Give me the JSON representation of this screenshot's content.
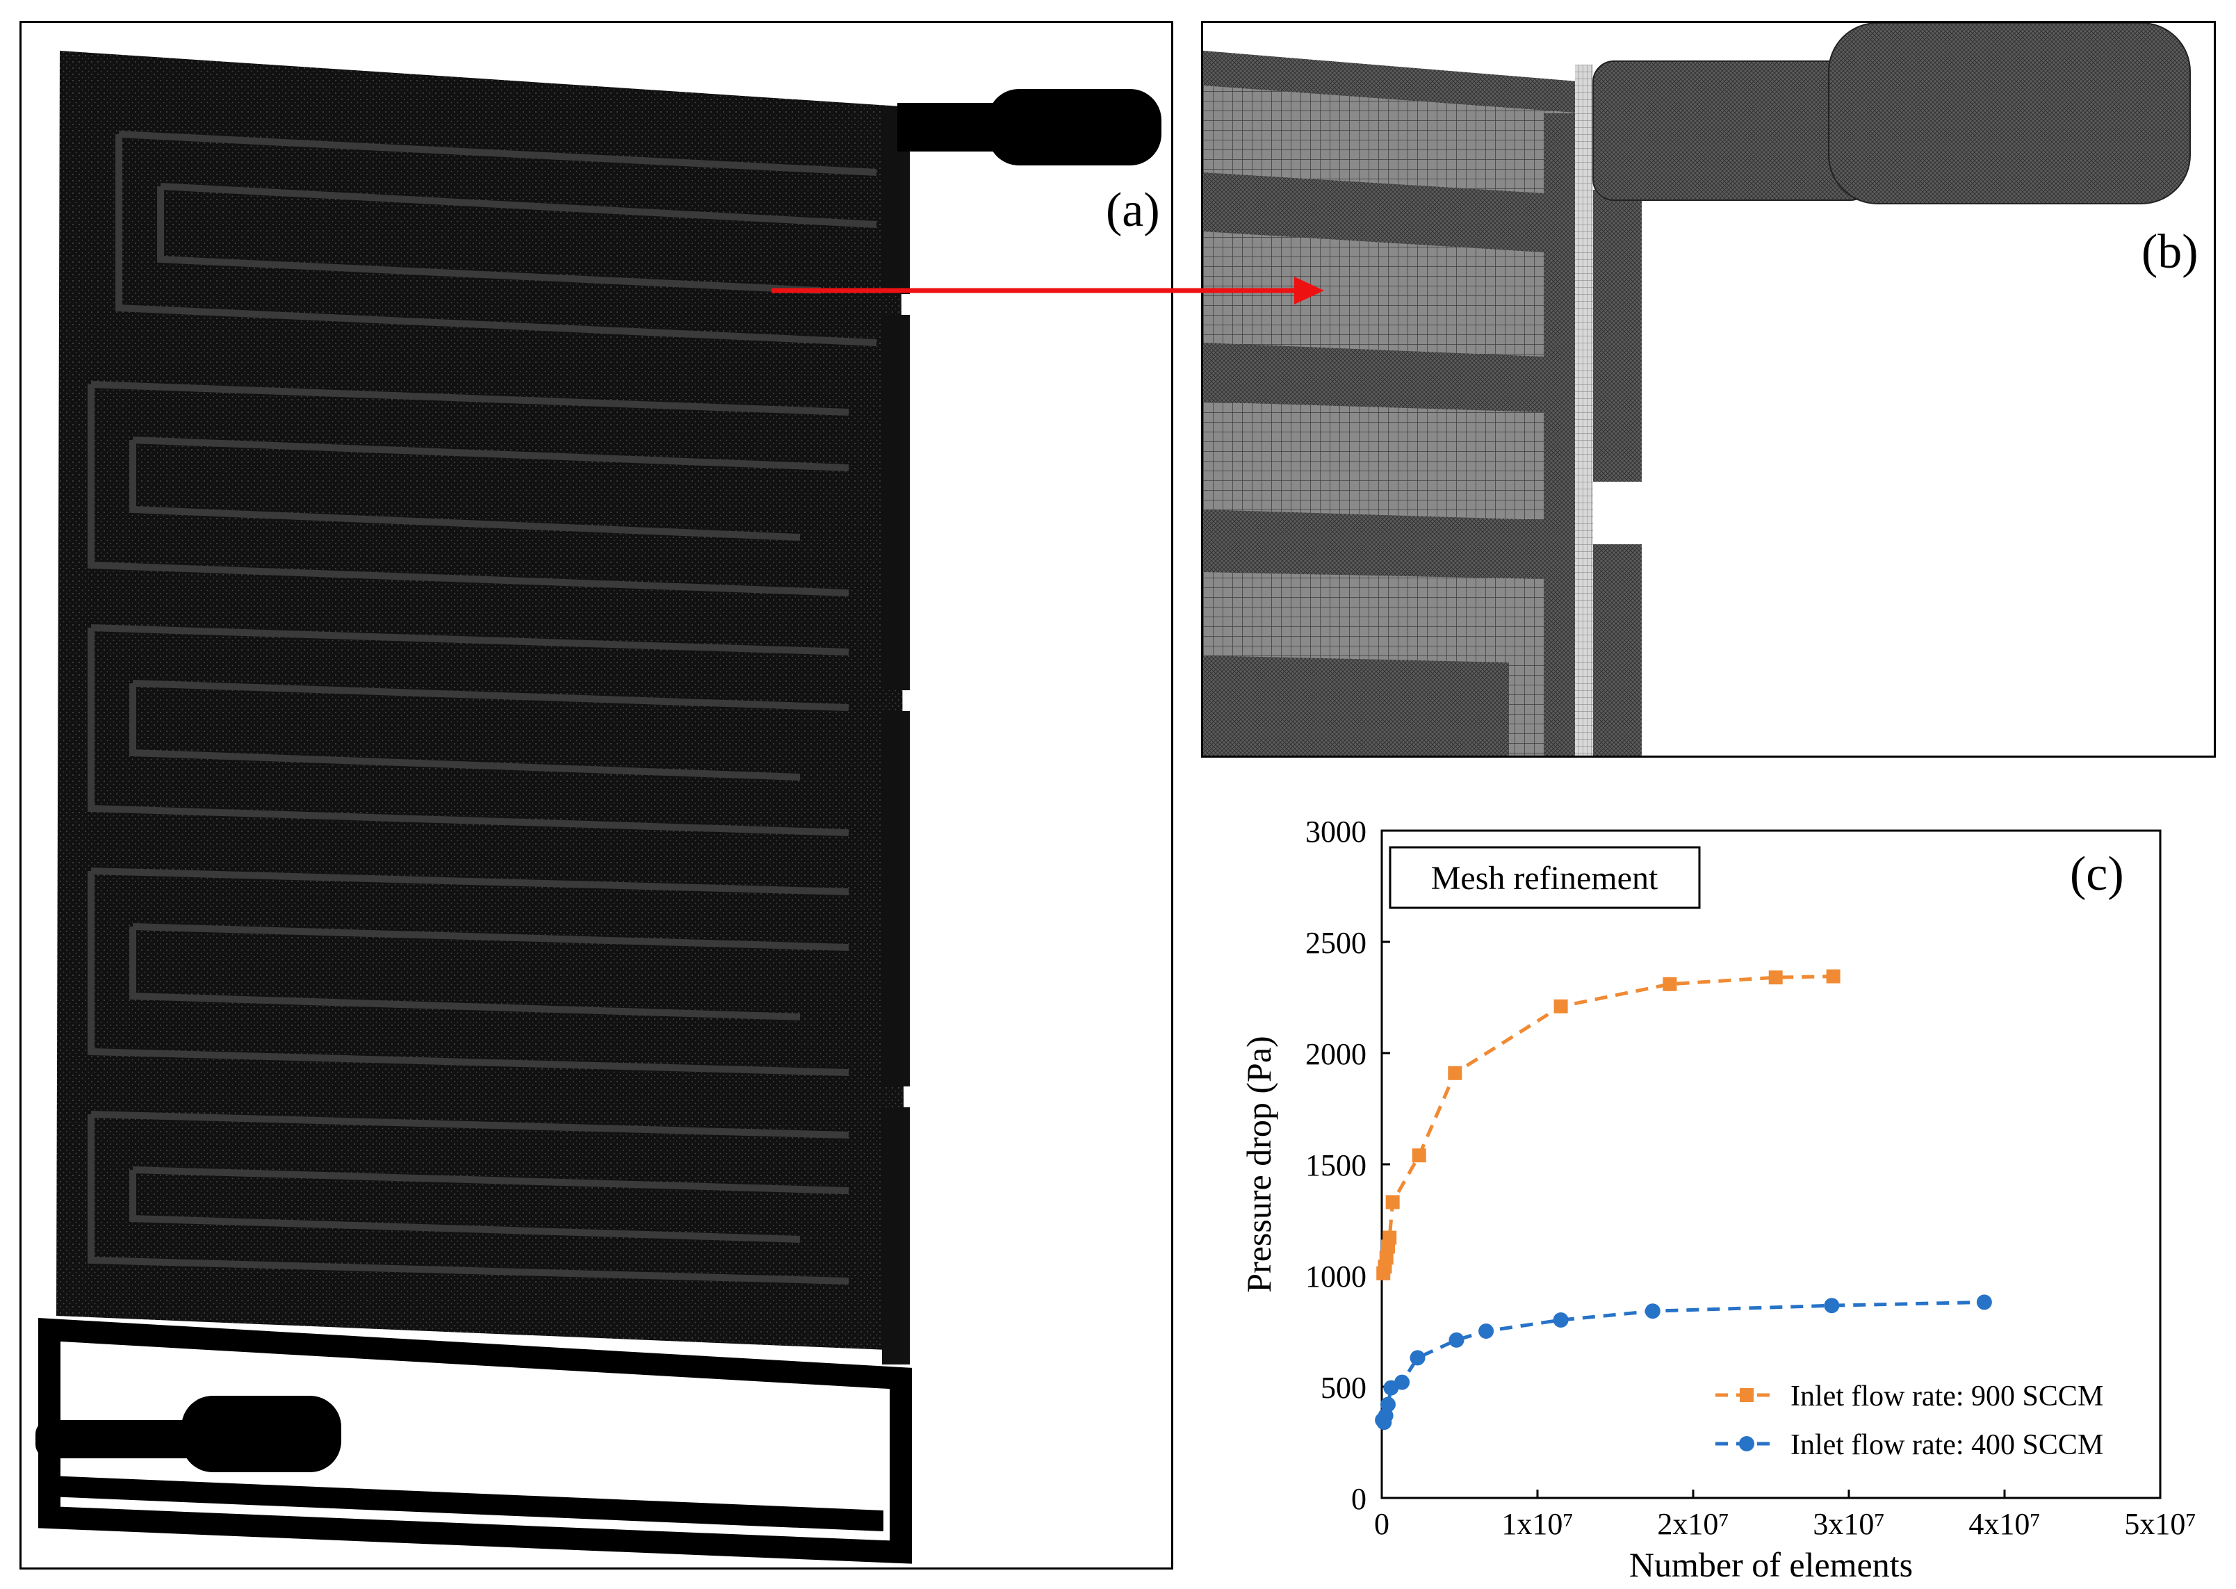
{
  "labels": {
    "a": "(a)",
    "b": "(b)",
    "c": "(c)"
  },
  "colors": {
    "arrow": "#ee1111",
    "series_900": "#f08a33",
    "series_400": "#2673c8"
  },
  "chart_data": {
    "type": "scatter",
    "title": "Mesh refinement",
    "xlabel": "Number of elements",
    "ylabel": "Pressure drop (Pa)",
    "xlim": [
      0,
      50000000
    ],
    "ylim": [
      0,
      3000
    ],
    "xticks": [
      "0",
      "1x10⁷",
      "2x10⁷",
      "3x10⁷",
      "4x10⁷",
      "5x10⁷"
    ],
    "yticks": [
      "0",
      "500",
      "1000",
      "1500",
      "2000",
      "2500",
      "3000"
    ],
    "legend_position": "bottom-right",
    "grid": false,
    "series": [
      {
        "name": "Inlet flow rate: 900 SCCM",
        "marker": "square",
        "line": "dashed",
        "x": [
          100000,
          200000,
          300000,
          400000,
          500000,
          700000,
          2400000,
          4700000,
          11500000,
          18500000,
          25300000,
          29000000
        ],
        "y": [
          1010,
          1040,
          1080,
          1130,
          1170,
          1330,
          1540,
          1910,
          2210,
          2310,
          2340,
          2345
        ]
      },
      {
        "name": "Inlet flow rate: 400 SCCM",
        "marker": "circle",
        "line": "dashed",
        "x": [
          50000,
          150000,
          250000,
          400000,
          600000,
          1300000,
          2300000,
          4800000,
          6700000,
          11500000,
          17400000,
          28900000,
          38700000
        ],
        "y": [
          350,
          340,
          370,
          420,
          495,
          520,
          630,
          710,
          750,
          800,
          840,
          865,
          880
        ]
      }
    ]
  }
}
